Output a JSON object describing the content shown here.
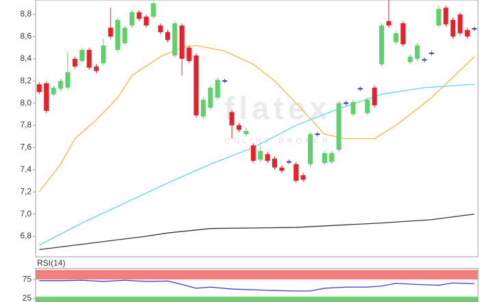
{
  "chart_data": [
    {
      "type": "candlestick",
      "watermark": {
        "brand": "flatex",
        "tagline": "ONLINE BROKER"
      },
      "open": [
        8.17,
        8.18,
        8.08,
        8.13,
        8.14,
        8.4,
        8.38,
        8.48,
        8.33,
        8.36,
        8.68,
        8.48,
        8.54,
        8.7,
        8.82,
        8.78,
        8.78,
        8.7,
        8.64,
        8.43,
        8.7,
        8.5,
        8.43,
        7.88,
        7.96,
        8.05,
        8.2,
        7.92,
        7.8,
        7.72,
        7.62,
        7.49,
        7.54,
        7.5,
        7.42,
        7.47,
        7.45,
        7.35,
        7.45,
        7.72,
        7.46,
        7.47,
        7.58,
        8.0,
        7.9,
        8.13,
        7.91,
        8.14,
        8.35,
        8.74,
        8.55,
        8.72,
        8.37,
        8.4,
        8.39,
        8.45,
        8.7,
        8.86,
        8.75,
        8.8,
        8.66,
        8.67
      ],
      "high": [
        8.19,
        8.2,
        8.16,
        8.22,
        8.46,
        8.42,
        8.5,
        8.5,
        8.35,
        8.58,
        8.86,
        8.77,
        8.7,
        8.84,
        8.84,
        8.8,
        8.92,
        8.72,
        8.66,
        8.74,
        8.72,
        8.52,
        8.45,
        8.05,
        8.16,
        8.23,
        8.22,
        7.94,
        7.82,
        7.78,
        7.64,
        7.62,
        7.56,
        7.52,
        7.44,
        7.49,
        7.47,
        7.37,
        7.74,
        7.74,
        7.57,
        7.57,
        8.02,
        8.02,
        8.03,
        8.15,
        8.05,
        8.16,
        8.72,
        8.93,
        8.65,
        8.74,
        8.44,
        8.54,
        8.41,
        8.47,
        8.88,
        8.88,
        8.77,
        8.82,
        8.68,
        8.69
      ],
      "low": [
        8.08,
        7.91,
        8.06,
        8.11,
        8.12,
        8.31,
        8.36,
        8.3,
        8.27,
        8.34,
        8.58,
        8.46,
        8.52,
        8.68,
        8.74,
        8.68,
        8.76,
        8.62,
        8.55,
        8.41,
        8.25,
        8.36,
        7.87,
        7.86,
        7.94,
        8.03,
        8.18,
        7.68,
        7.74,
        7.7,
        7.46,
        7.47,
        7.46,
        7.4,
        7.37,
        7.45,
        7.28,
        7.29,
        7.43,
        7.7,
        7.44,
        7.45,
        7.56,
        7.98,
        7.88,
        8.11,
        7.89,
        7.96,
        8.33,
        8.68,
        8.53,
        8.51,
        8.35,
        8.38,
        8.37,
        8.43,
        8.68,
        8.69,
        8.58,
        8.61,
        8.58,
        8.65
      ],
      "close": [
        8.1,
        7.93,
        8.14,
        8.2,
        8.28,
        8.33,
        8.48,
        8.32,
        8.29,
        8.52,
        8.6,
        8.75,
        8.68,
        8.82,
        8.76,
        8.7,
        8.9,
        8.64,
        8.57,
        8.72,
        8.4,
        8.38,
        7.89,
        8.03,
        8.14,
        8.21,
        8.2,
        7.8,
        7.76,
        7.75,
        7.48,
        7.57,
        7.48,
        7.42,
        7.39,
        7.47,
        7.3,
        7.31,
        7.72,
        7.72,
        7.55,
        7.55,
        8.0,
        8.0,
        8.01,
        8.13,
        8.03,
        7.98,
        8.7,
        8.7,
        8.63,
        8.53,
        8.42,
        8.52,
        8.39,
        8.45,
        8.85,
        8.71,
        8.6,
        8.63,
        8.6,
        8.67
      ],
      "colors": {
        "up": "#5fd16a",
        "down": "#e8202a",
        "flat": "#3a3aa8"
      },
      "lines": [
        {
          "color": "#f5b942",
          "x": [
            0,
            3,
            5,
            8,
            11,
            13,
            17,
            20,
            22,
            26,
            30,
            33,
            36,
            40,
            43,
            47,
            50,
            55,
            61
          ],
          "values": [
            7.2,
            7.45,
            7.68,
            7.85,
            8.05,
            8.25,
            8.42,
            8.5,
            8.52,
            8.47,
            8.35,
            8.2,
            8.0,
            7.72,
            7.68,
            7.68,
            7.8,
            8.05,
            8.42
          ]
        },
        {
          "color": "#5bd6f0",
          "x": [
            0,
            6,
            12,
            18,
            24,
            30,
            36,
            42,
            48,
            54,
            61
          ],
          "values": [
            6.72,
            6.92,
            7.1,
            7.28,
            7.45,
            7.6,
            7.8,
            7.95,
            8.08,
            8.14,
            8.17
          ]
        },
        {
          "color": "#333333",
          "x": [
            0,
            15,
            18,
            24,
            36,
            48,
            55,
            61
          ],
          "values": [
            6.68,
            6.8,
            6.83,
            6.87,
            6.88,
            6.92,
            6.95,
            7.0
          ]
        }
      ],
      "xlim": [
        -0.5,
        61.5
      ],
      "ylim": [
        6.615,
        8.93
      ],
      "yticks": [
        {
          "value": 6.8,
          "label": "6,8"
        },
        {
          "value": 7.0,
          "label": "7,0"
        },
        {
          "value": 7.2,
          "label": "7,2"
        },
        {
          "value": 7.4,
          "label": "7,4"
        },
        {
          "value": 7.6,
          "label": "7,6"
        },
        {
          "value": 7.8,
          "label": "7,8"
        },
        {
          "value": 8.0,
          "label": "8,0"
        },
        {
          "value": 8.2,
          "label": "8,2"
        },
        {
          "value": 8.4,
          "label": "8,4"
        },
        {
          "value": 8.6,
          "label": "8,6"
        },
        {
          "value": 8.8,
          "label": "8,8"
        }
      ]
    },
    {
      "type": "line",
      "title": "RSI(14)",
      "x": [
        0,
        3,
        6,
        9,
        12,
        15,
        18,
        20,
        22,
        24,
        27,
        30,
        33,
        36,
        38,
        40,
        43,
        46,
        48,
        50,
        53,
        56,
        58,
        61
      ],
      "values": [
        72,
        72,
        73,
        70,
        73,
        70,
        71,
        62,
        52,
        55,
        50,
        48,
        46,
        45,
        45,
        52,
        55,
        55,
        58,
        65,
        62,
        60,
        66,
        64
      ],
      "color": "#3b3bd6",
      "bands": [
        {
          "from": 75,
          "to": 100,
          "color": "#f08080"
        },
        {
          "from": 0,
          "to": 30,
          "color": "#6fcf6f"
        }
      ],
      "xlim": [
        -0.5,
        61.5
      ],
      "ylim": [
        16,
        104
      ],
      "yticks": [
        25,
        75
      ]
    }
  ]
}
